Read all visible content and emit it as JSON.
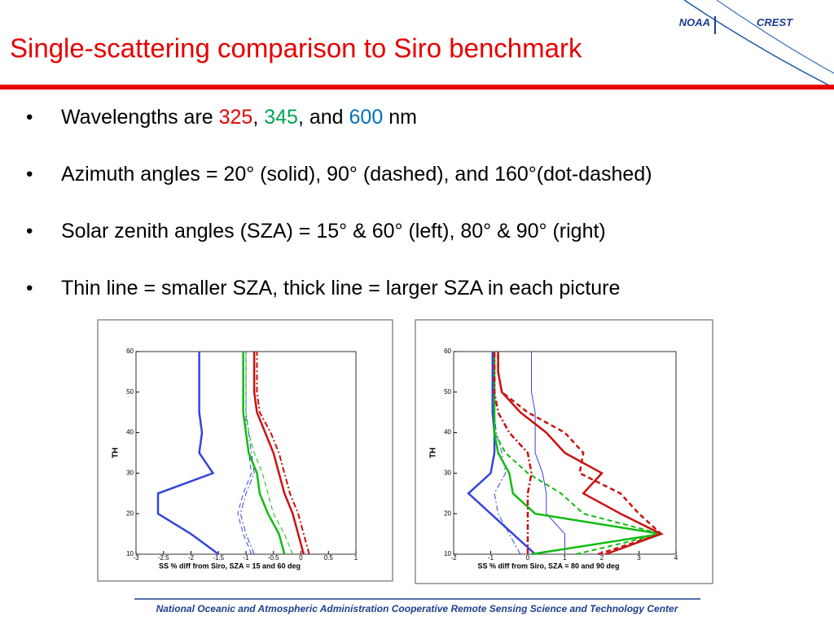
{
  "header": {
    "title": "Single-scattering comparison to Siro benchmark",
    "logo": [
      "NOAA",
      "CREST"
    ]
  },
  "bullets": [
    {
      "segments": [
        {
          "text": "Wavelengths are "
        },
        {
          "text": "325",
          "color": "#e60000"
        },
        {
          "text": ", "
        },
        {
          "text": "345",
          "color": "#00a651"
        },
        {
          "text": ", and "
        },
        {
          "text": "600",
          "color": "#0070c0"
        },
        {
          "text": " nm"
        }
      ]
    },
    {
      "segments": [
        {
          "text": "Azimuth angles = 20° (solid), 90° (dashed), and 160°(dot-dashed)"
        }
      ]
    },
    {
      "segments": [
        {
          "text": "Solar zenith angles (SZA) = 15° & 60° (left), 80° & 90° (right)"
        }
      ]
    },
    {
      "segments": [
        {
          "text": "Thin line = smaller SZA, thick line = larger SZA in each picture"
        }
      ]
    }
  ],
  "footer": "National Oceanic and Atmospheric Administration Cooperative Remote Sensing Science and Technology Center",
  "chart_data": [
    {
      "type": "line",
      "xlabel": "SS % diff from Siro, SZA = 15 and 60 deg",
      "ylabel": "TH",
      "xlim": [
        -3,
        1
      ],
      "xticks": [
        -3,
        -2.5,
        -2,
        -1.5,
        -1,
        -0.5,
        0,
        0.5,
        1
      ],
      "ylim": [
        10,
        60
      ],
      "yticks": [
        10,
        20,
        30,
        40,
        50,
        60
      ],
      "y": [
        10,
        15,
        20,
        25,
        30,
        35,
        40,
        45,
        50,
        55,
        60
      ],
      "series": [
        {
          "color": "#3344dd",
          "width": 2.5,
          "dash": "solid",
          "values": [
            -1.5,
            -2.0,
            -2.6,
            -2.6,
            -1.6,
            -1.85,
            -1.8,
            -1.85,
            -1.85,
            -1.85,
            -1.85
          ]
        },
        {
          "color": "#3344dd",
          "width": 1,
          "dash": "dashed",
          "values": [
            -0.9,
            -1.05,
            -1.15,
            -1.05,
            -0.9,
            -0.95,
            -1.0,
            -1.0,
            -1.0,
            -1.0,
            -1.0
          ]
        },
        {
          "color": "#3344dd",
          "width": 1,
          "dash": "dashdot",
          "values": [
            -0.85,
            -1.0,
            -1.1,
            -1.0,
            -0.85,
            -0.9,
            -0.95,
            -1.0,
            -1.0,
            -1.0,
            -1.0
          ]
        },
        {
          "color": "#11bb11",
          "width": 2.5,
          "dash": "solid",
          "values": [
            -0.3,
            -0.4,
            -0.6,
            -0.75,
            -0.8,
            -0.95,
            -1.0,
            -1.05,
            -1.05,
            -1.05,
            -1.05
          ]
        },
        {
          "color": "#11bb11",
          "width": 1,
          "dash": "dashed",
          "values": [
            -0.15,
            -0.3,
            -0.5,
            -0.6,
            -0.7,
            -0.85,
            -0.95,
            -1.0,
            -1.0,
            -1.0,
            -1.0
          ]
        },
        {
          "color": "#cc1111",
          "width": 2.5,
          "dash": "solid",
          "values": [
            0.05,
            -0.05,
            -0.15,
            -0.3,
            -0.4,
            -0.5,
            -0.65,
            -0.8,
            -0.85,
            -0.85,
            -0.85
          ]
        },
        {
          "color": "#cc1111",
          "width": 2,
          "dash": "dashdot",
          "values": [
            0.15,
            0.05,
            -0.05,
            -0.2,
            -0.3,
            -0.4,
            -0.55,
            -0.75,
            -0.8,
            -0.8,
            -0.8
          ]
        }
      ]
    },
    {
      "type": "line",
      "xlabel": "SS % diff from Siro, SZA = 80 and 90 deg",
      "ylabel": "TH",
      "xlim": [
        -2,
        4
      ],
      "xticks": [
        -2,
        -1,
        0,
        1,
        2,
        3,
        4
      ],
      "ylim": [
        10,
        60
      ],
      "yticks": [
        10,
        20,
        30,
        40,
        50,
        60
      ],
      "y": [
        10,
        15,
        20,
        25,
        30,
        35,
        40,
        45,
        50,
        55,
        60
      ],
      "series": [
        {
          "color": "#3344dd",
          "width": 2.5,
          "dash": "solid",
          "values": [
            0.2,
            -0.4,
            -1.0,
            -1.6,
            -1.0,
            -0.9,
            -0.9,
            -0.95,
            -0.95,
            -0.95,
            -0.95
          ]
        },
        {
          "color": "#3344dd",
          "width": 1,
          "dash": "solid",
          "values": [
            1.0,
            1.0,
            0.5,
            0.5,
            0.4,
            0.2,
            0.2,
            0.2,
            0.1,
            0.1,
            0.1
          ]
        },
        {
          "color": "#3344dd",
          "width": 1,
          "dash": "dashdot",
          "values": [
            -0.2,
            -0.5,
            -0.8,
            -0.9,
            -0.6,
            -0.7,
            -0.85,
            -0.9,
            -0.9,
            -0.9,
            -0.9
          ]
        },
        {
          "color": "#11bb11",
          "width": 2.5,
          "dash": "solid",
          "values": [
            0.1,
            3.6,
            0.2,
            -0.4,
            -0.5,
            -0.8,
            -0.9,
            -0.9,
            -0.9,
            -0.9,
            -0.9
          ]
        },
        {
          "color": "#11bb11",
          "width": 2,
          "dash": "dashed",
          "values": [
            1.3,
            3.6,
            1.5,
            0.9,
            0.0,
            -0.6,
            -0.9,
            -0.9,
            -0.9,
            -0.9,
            -0.9
          ]
        },
        {
          "color": "#cc1111",
          "width": 2.5,
          "dash": "solid",
          "values": [
            2.1,
            3.6,
            2.5,
            1.5,
            2.0,
            1.0,
            0.5,
            -0.2,
            -0.7,
            -0.8,
            -0.8
          ]
        },
        {
          "color": "#cc1111",
          "width": 2.5,
          "dash": "dashed",
          "values": [
            1.9,
            3.6,
            3.0,
            2.5,
            1.4,
            1.5,
            1.0,
            0.0,
            -0.7,
            -0.8,
            -0.8
          ]
        },
        {
          "color": "#cc1111",
          "width": 2.5,
          "dash": "dashdot",
          "values": [
            0.0,
            0.0,
            0.0,
            0.0,
            0.1,
            0.0,
            -0.5,
            -0.8,
            -0.9,
            -0.9,
            -0.9
          ]
        }
      ]
    }
  ]
}
